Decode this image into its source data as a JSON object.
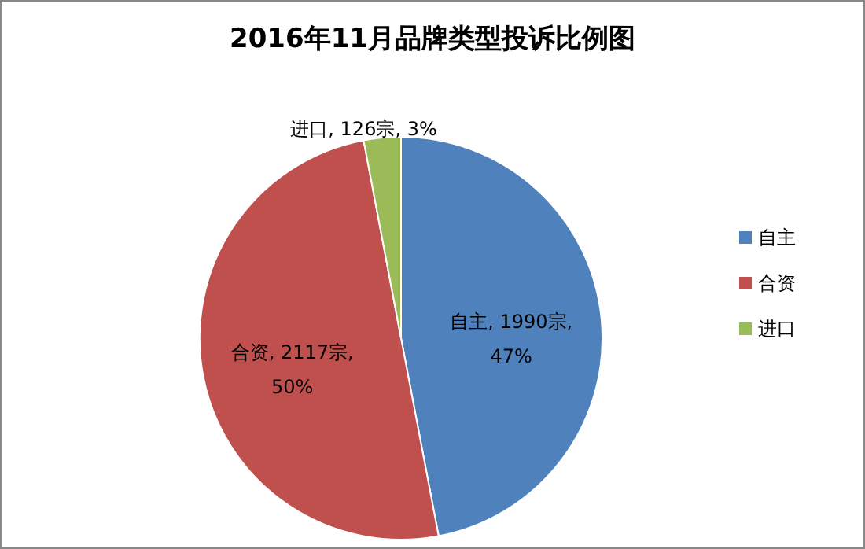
{
  "chart_data": {
    "type": "pie",
    "title": "2016年11月品牌类型投诉比例图",
    "categories": [
      "自主",
      "合资",
      "进口"
    ],
    "values": [
      1990,
      2117,
      126
    ],
    "colors": [
      "#4f81bd",
      "#c0504d",
      "#9bbb59"
    ],
    "value_labels": [
      "自主, 1990宗, 47%",
      "合资, 2117宗, 50%",
      "进口, 126宗, 3%"
    ],
    "legend": "right"
  }
}
